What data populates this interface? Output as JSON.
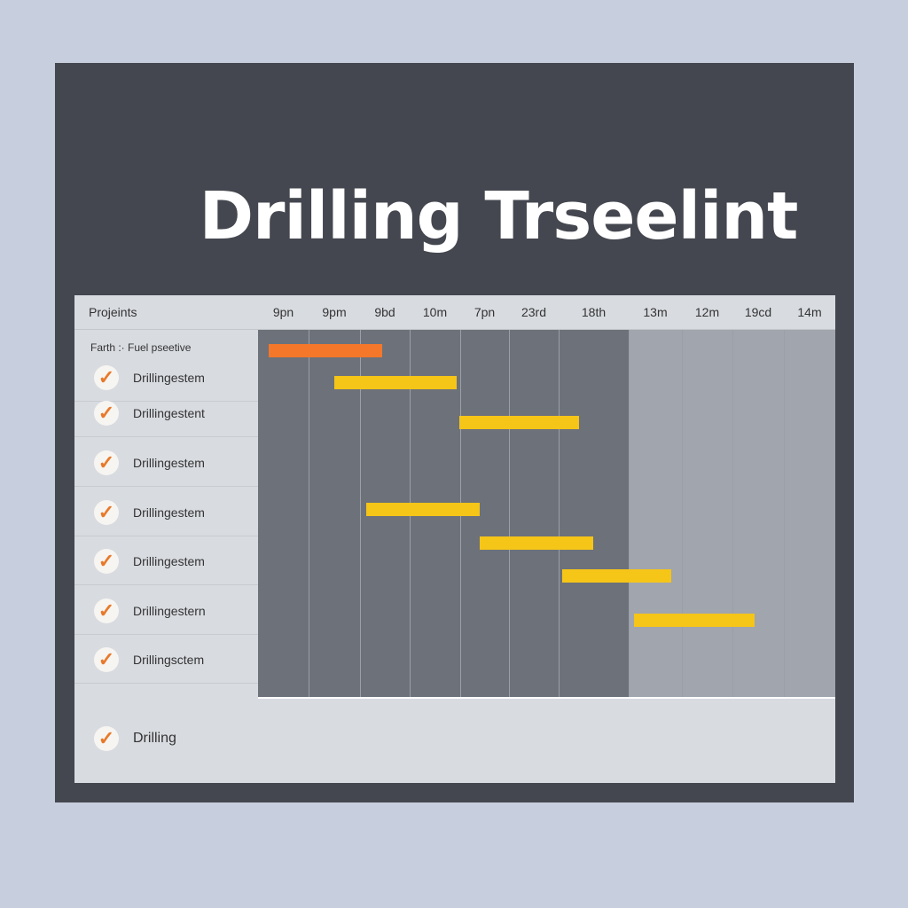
{
  "title": "Drilling Trseelint",
  "colors": {
    "orange": "#f4772a",
    "yellow": "#f5c518",
    "background": "#c7cedd",
    "panel": "#44474f"
  },
  "chart_data": {
    "type": "gantt",
    "title": "Drilling Trseelint",
    "row_header": "Projeints",
    "columns": [
      "9pn",
      "9pm",
      "9bd",
      "10m",
      "7pn",
      "23rd",
      "18th",
      "13m",
      "12m",
      "19cd",
      "14m"
    ],
    "group_label": "Farth :· Fuel pseetive",
    "rows": [
      "Drillingestem",
      "Drillingestent",
      "Drillingestem",
      "Drillingestem",
      "Drillingestem",
      "Drillingestern",
      "Drillingsctem"
    ],
    "footer_row": "Drilling",
    "bars": [
      {
        "start": 0.21,
        "end": 2.45,
        "color": "#f4772a"
      },
      {
        "start": 1.5,
        "end": 3.93,
        "color": "#f5c518"
      },
      {
        "start": 3.98,
        "end": 6.29,
        "color": "#f5c518"
      },
      {
        "start": 2.12,
        "end": 4.4,
        "color": "#f5c518"
      },
      {
        "start": 4.4,
        "end": 6.49,
        "color": "#f5c518"
      },
      {
        "start": 6.05,
        "end": 7.8,
        "color": "#f5c518"
      },
      {
        "start": 7.1,
        "end": 9.43,
        "color": "#f5c518"
      }
    ],
    "check_icon": "check-icon"
  }
}
